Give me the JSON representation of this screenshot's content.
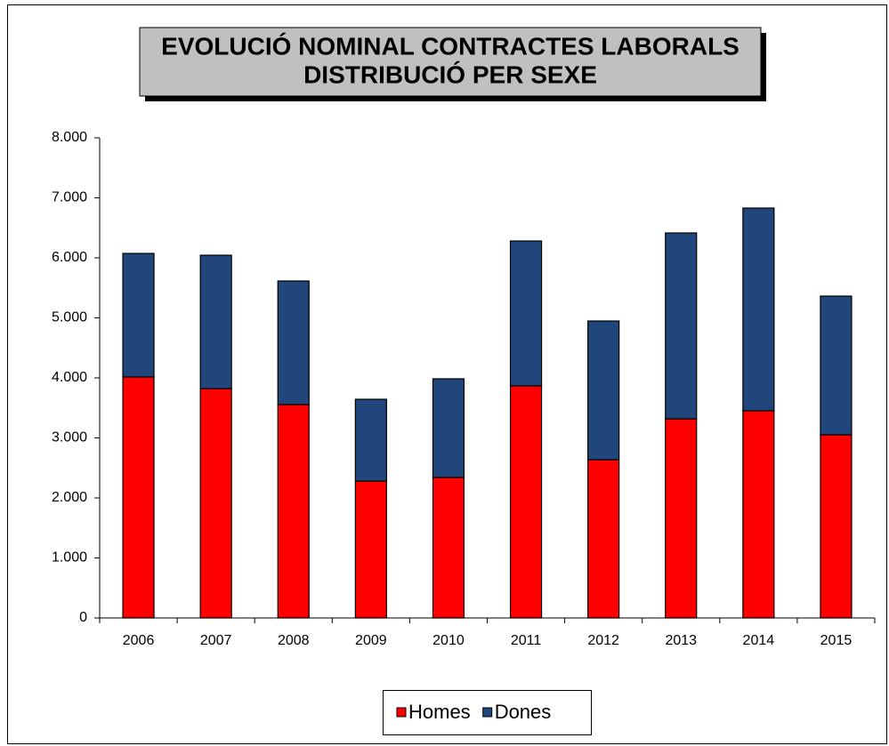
{
  "chart_data": {
    "type": "stacked_bar",
    "title": [
      "EVOLUCIÓ NOMINAL CONTRACTES LABORALS",
      "DISTRIBUCIÓ PER SEXE"
    ],
    "categories": [
      "2006",
      "2007",
      "2008",
      "2009",
      "2010",
      "2011",
      "2012",
      "2013",
      "2014",
      "2015"
    ],
    "series": [
      {
        "name": "Homes",
        "color": "#ff0000",
        "values": [
          4015,
          3822,
          3556,
          2281,
          2341,
          3867,
          2637,
          3318,
          3452,
          3052
        ]
      },
      {
        "name": "Dones",
        "color": "#21467b",
        "values": [
          2059,
          2222,
          2059,
          1363,
          1644,
          2414,
          2311,
          3097,
          3378,
          2311
        ]
      }
    ],
    "ylim": [
      0,
      8000
    ],
    "yticks": [
      0,
      {
        "value": 1000,
        "label": "1.000"
      },
      {
        "value": 2000,
        "label": "2.000"
      },
      {
        "value": 3000,
        "label": "3.000"
      },
      {
        "value": 4000,
        "label": "4.000"
      },
      {
        "value": 5000,
        "label": "5.000"
      },
      {
        "value": 6000,
        "label": "6.000"
      },
      {
        "value": 7000,
        "label": "7.000"
      },
      {
        "value": 8000,
        "label": "8.000"
      }
    ],
    "legend": "bottom"
  }
}
